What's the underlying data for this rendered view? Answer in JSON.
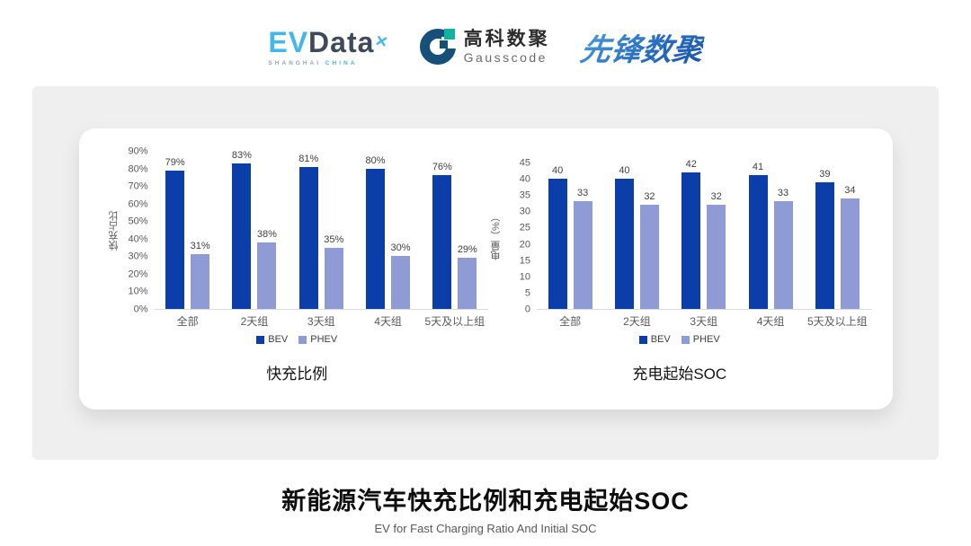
{
  "header": {
    "evdata": {
      "ev": "EV",
      "data": "Data",
      "x_mark": "✕",
      "sub_left": "SHANGHAI",
      "sub_right": "CHINA"
    },
    "gausscode": {
      "cn": "高科数聚",
      "en": "Gausscode"
    },
    "xianfeng": {
      "text": "先锋数聚"
    }
  },
  "chart_data": [
    {
      "type": "bar",
      "title": "快充比例",
      "ylabel": "快充占比",
      "categories": [
        "全部",
        "2天组",
        "3天组",
        "4天组",
        "5天及以上组"
      ],
      "series": [
        {
          "name": "BEV",
          "color": "#0b3ea8",
          "values": [
            79,
            83,
            81,
            80,
            76
          ],
          "labels": [
            "79%",
            "83%",
            "81%",
            "80%",
            "76%"
          ]
        },
        {
          "name": "PHEV",
          "color": "#8f9bd4",
          "values": [
            31,
            38,
            35,
            30,
            29
          ],
          "labels": [
            "31%",
            "38%",
            "35%",
            "30%",
            "29%"
          ]
        }
      ],
      "ylim": [
        0,
        90
      ],
      "yticks": [
        "0%",
        "10%",
        "20%",
        "30%",
        "40%",
        "50%",
        "60%",
        "70%",
        "80%",
        "90%"
      ],
      "grid": false,
      "legend_position": "bottom"
    },
    {
      "type": "bar",
      "title": "充电起始SOC",
      "ylabel": "电量（%）",
      "categories": [
        "全部",
        "2天组",
        "3天组",
        "4天组",
        "5天及以上组"
      ],
      "series": [
        {
          "name": "BEV",
          "color": "#0b3ea8",
          "values": [
            40,
            40,
            42,
            41,
            39
          ],
          "labels": [
            "40",
            "40",
            "42",
            "41",
            "39"
          ]
        },
        {
          "name": "PHEV",
          "color": "#8f9bd4",
          "values": [
            33,
            32,
            32,
            33,
            34
          ],
          "labels": [
            "33",
            "32",
            "32",
            "33",
            "34"
          ]
        }
      ],
      "ylim": [
        0,
        45
      ],
      "yticks": [
        "0",
        "5",
        "10",
        "15",
        "20",
        "25",
        "30",
        "35",
        "40",
        "45"
      ],
      "grid": false,
      "legend_position": "bottom"
    }
  ],
  "footer": {
    "title": "新能源汽车快充比例和充电起始SOC",
    "subtitle": "EV for Fast Charging Ratio And Initial SOC"
  },
  "colors": {
    "bev": "#0b3ea8",
    "phev": "#8f9bd4",
    "panel_bg": "#efefef",
    "card_bg": "#ffffff"
  }
}
